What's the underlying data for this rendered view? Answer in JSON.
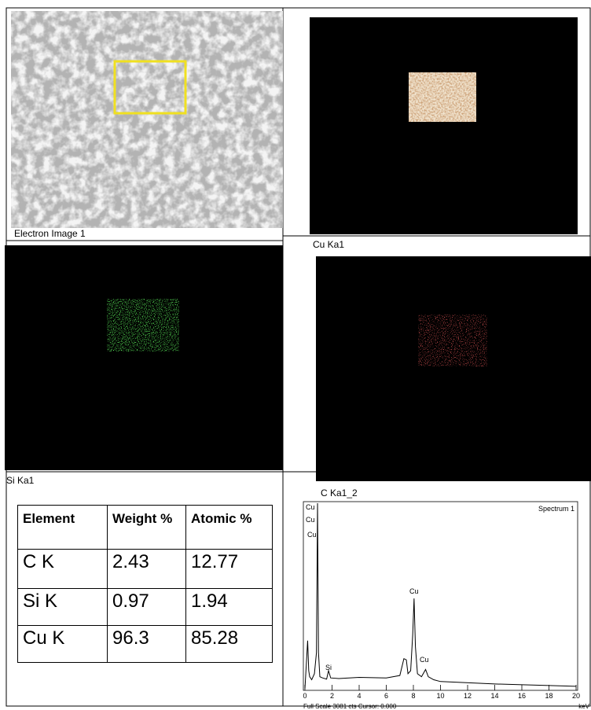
{
  "panels": {
    "electron": "Electron Image 1",
    "cu": "Cu Ka1",
    "si": "Si Ka1",
    "c": "C Ka1_2"
  },
  "table": {
    "header": [
      "Element",
      "Weight %",
      "Atomic %"
    ],
    "rows": [
      [
        "C  K",
        "2.43",
        "12.77"
      ],
      [
        "Si  K",
        "0.97",
        "1.94"
      ],
      [
        "Cu K",
        "96.3",
        "85.28"
      ]
    ]
  },
  "chart_data": {
    "type": "line",
    "title": "Spectrum 1",
    "x": [
      0,
      0.1,
      0.2,
      0.28,
      0.35,
      0.5,
      0.7,
      0.85,
      0.93,
      1.0,
      1.1,
      1.3,
      1.6,
      1.74,
      1.9,
      2.5,
      4,
      6,
      7,
      7.3,
      7.48,
      7.6,
      7.8,
      7.95,
      8.05,
      8.15,
      8.3,
      8.6,
      8.9,
      9.1,
      9.5,
      10,
      14,
      20
    ],
    "values": [
      0,
      400,
      800,
      300,
      200,
      150,
      250,
      600,
      3081,
      600,
      200,
      180,
      160,
      300,
      180,
      170,
      190,
      180,
      220,
      500,
      480,
      250,
      300,
      900,
      1500,
      700,
      250,
      200,
      320,
      200,
      150,
      120,
      80,
      40
    ],
    "color": "#000000",
    "xlim": [
      0,
      20
    ],
    "xticks": [
      0,
      2,
      4,
      6,
      8,
      10,
      12,
      14,
      16,
      18,
      20
    ],
    "ylim": [
      0,
      3081
    ],
    "peak_labels": [
      "Cu",
      "Cu",
      "Cu",
      "Si",
      "Cu",
      "Cu"
    ],
    "footer": "Full Scale 3081 cts Cursor: 0.000",
    "x_label": "keV"
  }
}
